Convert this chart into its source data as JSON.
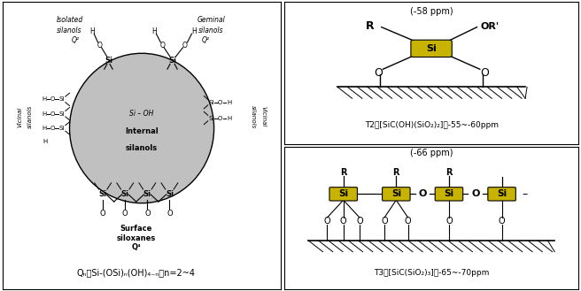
{
  "fig_width": 6.56,
  "fig_height": 3.29,
  "dpi": 100,
  "bg_color": "#ffffff",
  "si_yellow": "#c8b400",
  "circle_gray": "#c0c0c0",
  "t2_ppm": "(-58 ppm)",
  "t3_ppm": "(-66 ppm)",
  "t2_label": "T2：[SiC(OH)(SiO₂)₂]：-55～-60ppm",
  "t3_label": "T3：[SiC(SiO₂)₃]：-65～-70ppm",
  "formula": "Qₙ：Si-(OSi)ₙ(OH)₄₋ₙ， n=2～4"
}
